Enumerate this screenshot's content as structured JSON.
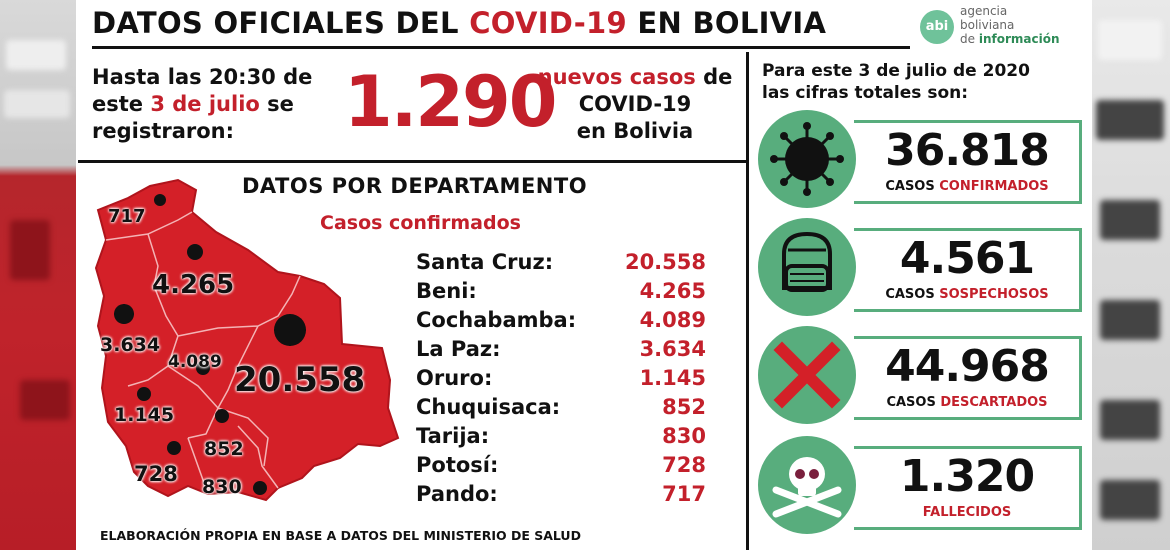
{
  "header": {
    "title_part1": "DATOS OFICIALES DEL ",
    "title_highlight": "COVID-19",
    "title_part2": " EN BOLIVIA"
  },
  "logo": {
    "badge": "abi",
    "line1": "agencia",
    "line2": "boliviana",
    "line3_a": "de ",
    "line3_b": "información"
  },
  "intro": {
    "line1": "Hasta las 20:30 de",
    "line2_a": "este ",
    "line2_date": "3 de julio",
    "line2_b": " se",
    "line3": "registraron:",
    "new_cases": "1.290",
    "right_highlight": "nuevos casos",
    "right_de": " de",
    "right_line2": "COVID-19",
    "right_line3": "en Bolivia"
  },
  "departments": {
    "title": "DATOS POR DEPARTAMENTO",
    "subtitle": "Casos confirmados",
    "rows": [
      {
        "name": "Santa Cruz:",
        "value": "20.558"
      },
      {
        "name": "Beni:",
        "value": "4.265"
      },
      {
        "name": "Cochabamba:",
        "value": "4.089"
      },
      {
        "name": "La Paz:",
        "value": "3.634"
      },
      {
        "name": "Oruro:",
        "value": "1.145"
      },
      {
        "name": "Chuquisaca:",
        "value": "852"
      },
      {
        "name": "Tarija:",
        "value": "830"
      },
      {
        "name": "Potosí:",
        "value": "728"
      },
      {
        "name": "Pando:",
        "value": "717"
      }
    ],
    "map_labels": {
      "pando": "717",
      "beni": "4.265",
      "la_paz": "3.634",
      "cochabamba": "4.089",
      "santa_cruz": "20.558",
      "oruro": "1.145",
      "chuquisaca": "852",
      "potosi": "728",
      "tarija": "830"
    }
  },
  "totals": {
    "heading_line1": "Para este 3 de julio de 2020",
    "heading_line2": "las cifras totales son:",
    "confirmed": {
      "number": "36.818",
      "label_a": "CASOS ",
      "label_b": "CONFIRMADOS",
      "icon": "virus-icon"
    },
    "suspected": {
      "number": "4.561",
      "label_a": "CASOS ",
      "label_b": "SOSPECHOSOS",
      "icon": "mask-face-icon"
    },
    "discarded": {
      "number": "44.968",
      "label_a": "CASOS ",
      "label_b": "DESCARTADOS",
      "icon": "red-x-icon"
    },
    "deaths": {
      "number": "1.320",
      "label_a": "",
      "label_b": "FALLECIDOS",
      "icon": "skull-icon"
    }
  },
  "footer": "ELABORACIÓN PROPIA EN BASE A DATOS DEL MINISTERIO DE SALUD",
  "colors": {
    "accent_red": "#c3202b",
    "accent_green": "#58ad7d",
    "text": "#111111"
  }
}
